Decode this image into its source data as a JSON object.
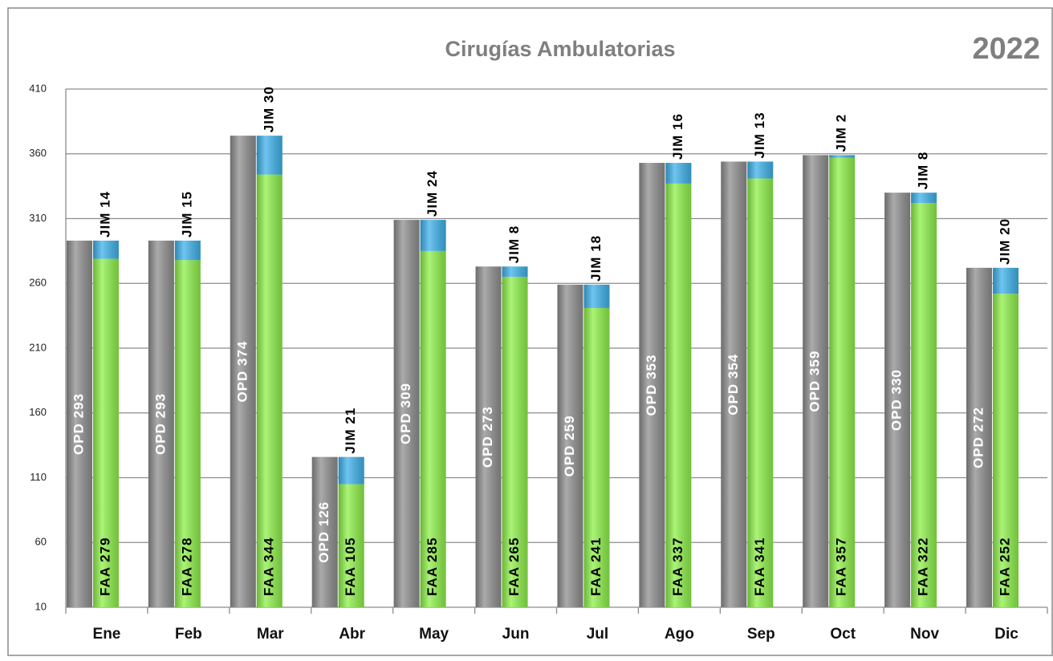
{
  "chart_data": {
    "type": "stacked_bar_pair",
    "title": "Cirugías Ambulatorias",
    "annotation": "2022",
    "categories": [
      "Ene",
      "Feb",
      "Mar",
      "Abr",
      "May",
      "Jun",
      "Jul",
      "Ago",
      "Sep",
      "Oct",
      "Nov",
      "Dic"
    ],
    "series": [
      {
        "name": "OPD",
        "color": "#8f8f8f",
        "stack": "a",
        "values": [
          293,
          293,
          374,
          126,
          309,
          273,
          259,
          353,
          354,
          359,
          330,
          272
        ],
        "value_labels": [
          "OPD 293",
          "OPD 293",
          "OPD 374",
          "OPD 126",
          "OPD 309",
          "OPD 273",
          "OPD 259",
          "OPD 353",
          "OPD 354",
          "OPD 359",
          "OPD 330",
          "OPD 272"
        ]
      },
      {
        "name": "FAA",
        "color": "#8ef04a",
        "stack": "b",
        "values": [
          279,
          278,
          344,
          105,
          285,
          265,
          241,
          337,
          341,
          357,
          322,
          252
        ],
        "value_labels": [
          "FAA 279",
          "FAA 278",
          "FAA 344",
          "FAA 105",
          "FAA 285",
          "FAA 265",
          "FAA 241",
          "FAA 337",
          "FAA 341",
          "FAA 357",
          "FAA 322",
          "FAA 252"
        ]
      },
      {
        "name": "JIM",
        "color": "#3fb2ea",
        "stack": "b",
        "values": [
          14,
          15,
          30,
          21,
          24,
          8,
          18,
          16,
          13,
          2,
          8,
          20
        ],
        "value_labels": [
          "JIM 14",
          "JIM 15",
          "JIM 30",
          "JIM 21",
          "JIM 24",
          "JIM 8",
          "JIM 18",
          "JIM 16",
          "JIM 13",
          "JIM 2",
          "JIM 8",
          "JIM 20"
        ]
      }
    ],
    "ylim": [
      10,
      410
    ],
    "yticks": [
      10,
      60,
      110,
      160,
      210,
      260,
      310,
      360,
      410
    ],
    "grid": true
  }
}
